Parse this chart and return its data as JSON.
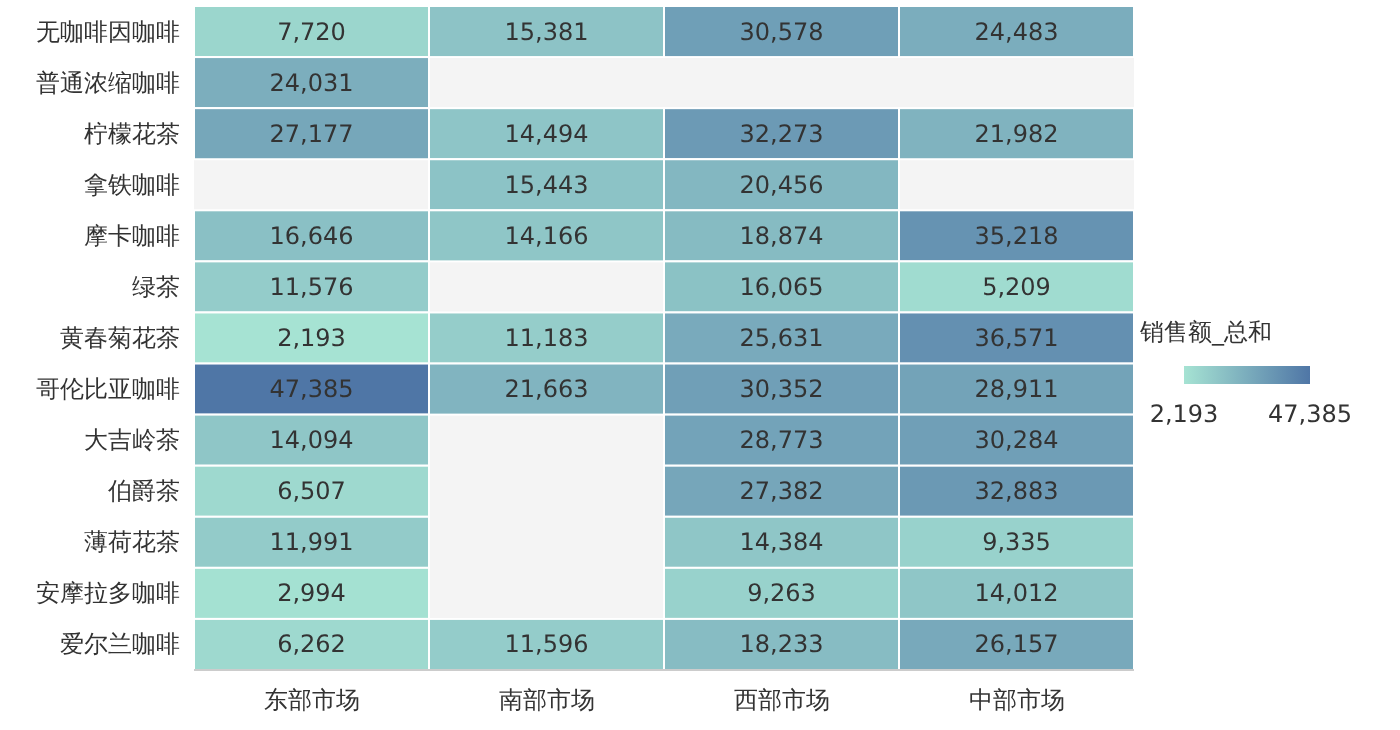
{
  "chart_data": {
    "type": "heatmap",
    "categories": [
      "东部市场",
      "南部市场",
      "西部市场",
      "中部市场"
    ],
    "y_categories": [
      "无咖啡因咖啡",
      "普通浓缩咖啡",
      "柠檬花茶",
      "拿铁咖啡",
      "摩卡咖啡",
      "绿茶",
      "黄春菊花茶",
      "哥伦比亚咖啡",
      "大吉岭茶",
      "伯爵茶",
      "薄荷花茶",
      "安摩拉多咖啡",
      "爱尔兰咖啡"
    ],
    "cells": [
      [
        7720,
        15381,
        30578,
        24483
      ],
      [
        24031,
        null,
        null,
        null
      ],
      [
        27177,
        14494,
        32273,
        21982
      ],
      [
        null,
        15443,
        20456,
        null
      ],
      [
        16646,
        14166,
        18874,
        35218
      ],
      [
        11576,
        null,
        16065,
        5209
      ],
      [
        2193,
        11183,
        25631,
        36571
      ],
      [
        47385,
        21663,
        30352,
        28911
      ],
      [
        14094,
        null,
        28773,
        30284
      ],
      [
        6507,
        null,
        27382,
        32883
      ],
      [
        11991,
        null,
        14384,
        9335
      ],
      [
        2994,
        null,
        9263,
        14012
      ],
      [
        6262,
        11596,
        18233,
        26157
      ]
    ],
    "cell_labels": [
      [
        "7,720",
        "15,381",
        "30,578",
        "24,483"
      ],
      [
        "24,031",
        null,
        null,
        null
      ],
      [
        "27,177",
        "14,494",
        "32,273",
        "21,982"
      ],
      [
        null,
        "15,443",
        "20,456",
        null
      ],
      [
        "16,646",
        "14,166",
        "18,874",
        "35,218"
      ],
      [
        "11,576",
        null,
        "16,065",
        "5,209"
      ],
      [
        "2,193",
        "11,183",
        "25,631",
        "36,571"
      ],
      [
        "47,385",
        "21,663",
        "30,352",
        "28,911"
      ],
      [
        "14,094",
        null,
        "28,773",
        "30,284"
      ],
      [
        "6,507",
        null,
        "27,382",
        "32,883"
      ],
      [
        "11,991",
        null,
        "14,384",
        "9,335"
      ],
      [
        "2,994",
        null,
        "9,263",
        "14,012"
      ],
      [
        "6,262",
        "11,596",
        "18,233",
        "26,157"
      ]
    ],
    "clabel": "销售额_总和",
    "clim": [
      2193,
      47385
    ],
    "cticks": [
      {
        "value": 2193,
        "label": "2,193"
      },
      {
        "value": 47385,
        "label": "47,385"
      }
    ]
  }
}
